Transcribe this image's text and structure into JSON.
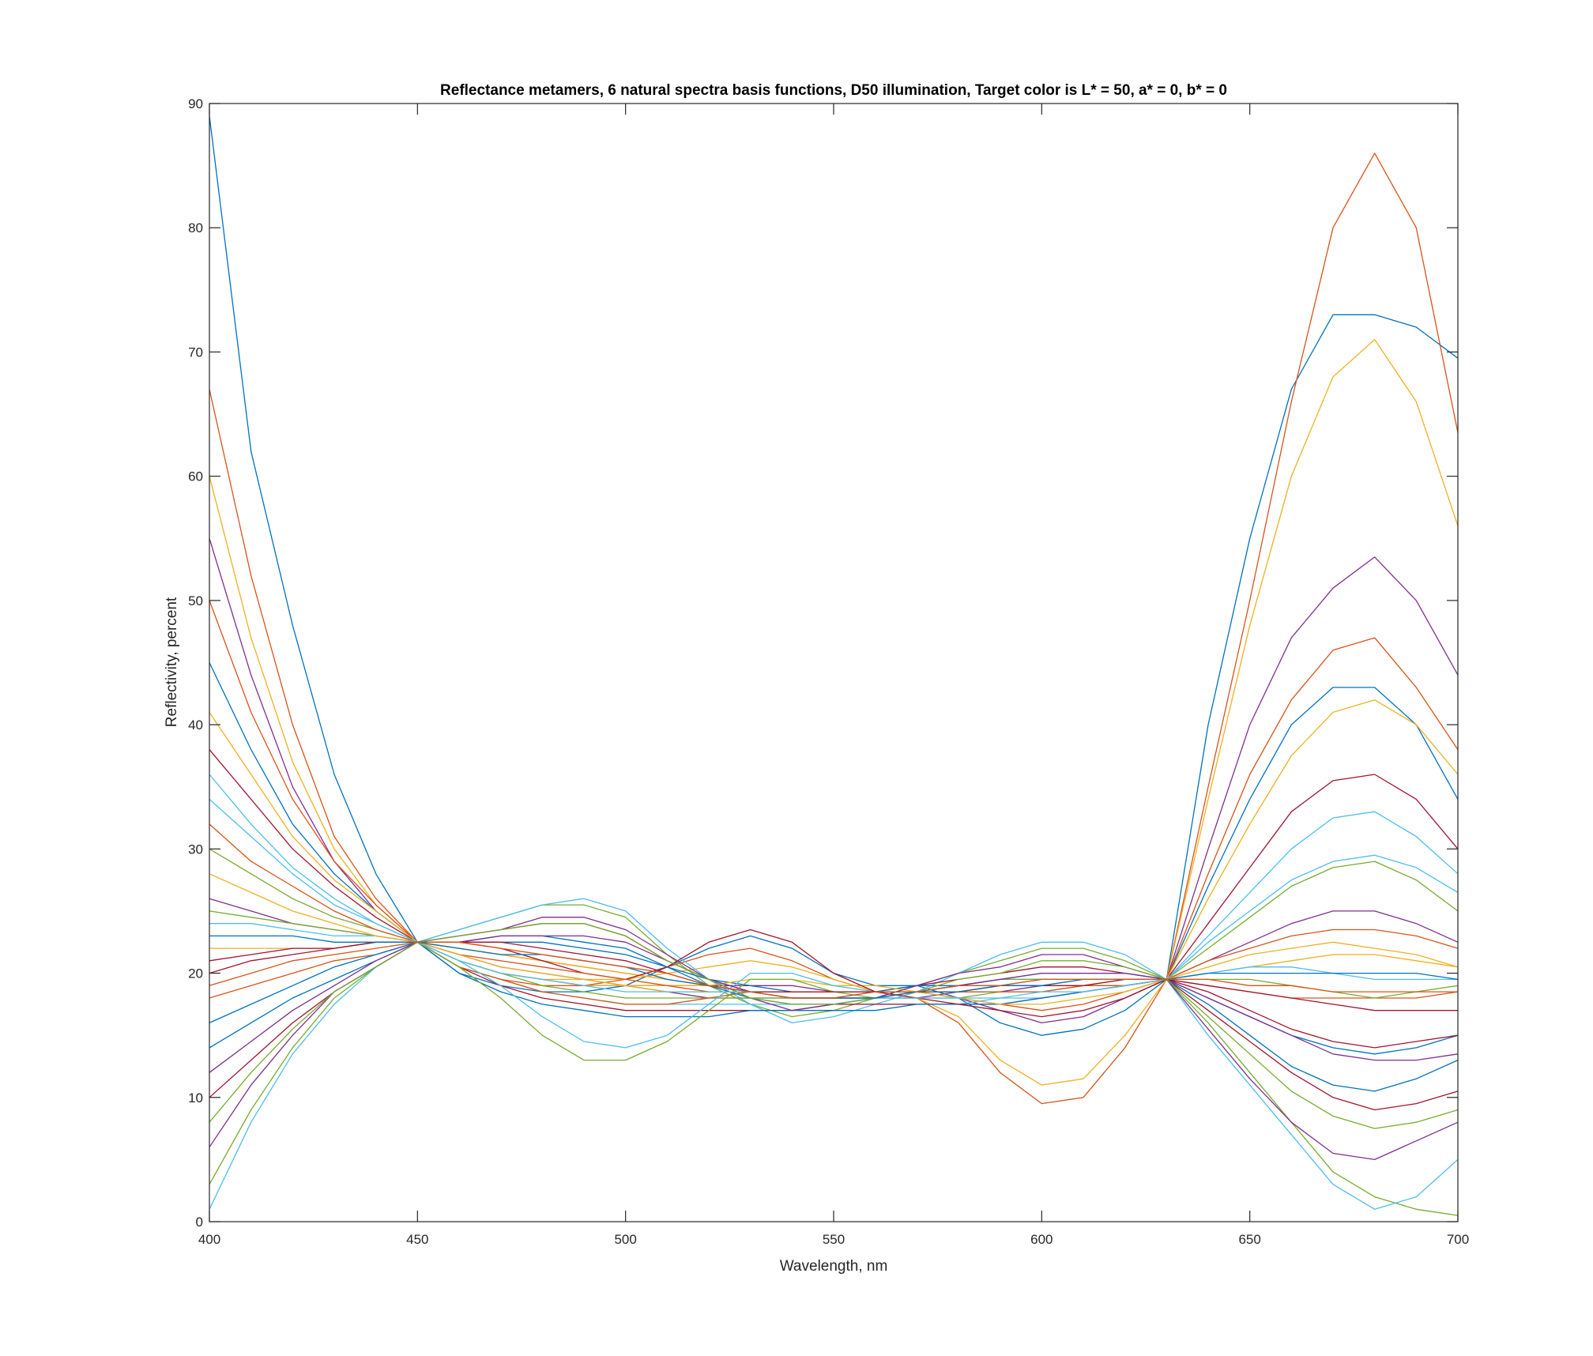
{
  "chart_data": {
    "type": "line",
    "title": "Reflectance metamers, 6 natural spectra basis functions, D50 illumination, Target color is L* = 50, a* = 0, b* = 0",
    "xlabel": "Wavelength, nm",
    "ylabel": "Reflectivity, percent",
    "xlim": [
      400,
      700
    ],
    "ylim": [
      0,
      90
    ],
    "xticks": [
      400,
      450,
      500,
      550,
      600,
      650,
      700
    ],
    "yticks": [
      0,
      10,
      20,
      30,
      40,
      50,
      60,
      70,
      80,
      90
    ],
    "grid": false,
    "legend": "none",
    "x": [
      400,
      410,
      420,
      430,
      440,
      450,
      460,
      470,
      480,
      490,
      500,
      510,
      520,
      530,
      540,
      550,
      560,
      570,
      580,
      590,
      600,
      610,
      620,
      630,
      640,
      650,
      660,
      670,
      680,
      690,
      700
    ],
    "color_order": [
      "#0072BD",
      "#D95319",
      "#EDB120",
      "#7E2F8E",
      "#77AC30",
      "#4DBEEE",
      "#A2142F"
    ],
    "series": [
      {
        "values": [
          89.0,
          62.0,
          48.0,
          36.0,
          28.0,
          22.5,
          20.0,
          19.0,
          18.5,
          18.5,
          19.0,
          20.5,
          22.0,
          23.0,
          22.0,
          20.0,
          19.0,
          19.0,
          18.0,
          16.0,
          15.0,
          15.5,
          17.0,
          19.5,
          40.0,
          55.0,
          67.0,
          73.0,
          73.0,
          72.0,
          69.5
        ]
      },
      {
        "values": [
          67.0,
          52.0,
          40.0,
          31.0,
          26.0,
          22.5,
          20.5,
          19.5,
          19.0,
          19.0,
          19.5,
          20.5,
          21.5,
          22.0,
          21.0,
          19.5,
          18.5,
          18.0,
          16.0,
          12.0,
          9.5,
          10.0,
          14.0,
          19.5,
          35.0,
          50.0,
          66.0,
          80.0,
          86.0,
          80.0,
          63.5
        ]
      },
      {
        "values": [
          60.0,
          47.0,
          37.0,
          30.0,
          25.5,
          22.5,
          21.0,
          20.0,
          19.5,
          19.5,
          19.5,
          20.0,
          20.5,
          21.0,
          20.5,
          19.5,
          18.5,
          18.0,
          16.5,
          13.0,
          11.0,
          11.5,
          15.0,
          19.5,
          34.0,
          48.0,
          60.0,
          68.0,
          71.0,
          66.0,
          56.0
        ]
      },
      {
        "values": [
          55.0,
          44.0,
          35.0,
          29.0,
          25.0,
          22.5,
          21.0,
          20.0,
          19.5,
          19.0,
          19.0,
          19.0,
          19.0,
          19.0,
          19.0,
          18.5,
          18.5,
          18.5,
          18.0,
          17.0,
          16.0,
          16.5,
          18.0,
          19.5,
          30.0,
          40.0,
          47.0,
          51.0,
          53.5,
          50.0,
          44.0
        ]
      },
      {
        "values": [
          3.0,
          9.0,
          14.0,
          18.0,
          20.5,
          22.5,
          23.5,
          24.5,
          25.5,
          25.5,
          24.5,
          21.5,
          19.0,
          17.5,
          16.5,
          17.0,
          18.0,
          19.0,
          20.0,
          21.0,
          22.0,
          22.0,
          21.0,
          19.5,
          16.0,
          12.0,
          8.0,
          4.0,
          2.0,
          1.0,
          0.5
        ]
      },
      {
        "values": [
          1.0,
          8.0,
          13.5,
          17.5,
          20.5,
          22.5,
          23.5,
          24.5,
          25.5,
          26.0,
          25.0,
          22.0,
          19.5,
          17.5,
          16.0,
          16.5,
          17.5,
          18.5,
          20.0,
          21.5,
          22.5,
          22.5,
          21.5,
          19.5,
          15.0,
          11.0,
          7.0,
          3.0,
          1.0,
          2.0,
          5.0
        ]
      },
      {
        "values": [
          10.0,
          13.0,
          16.0,
          18.5,
          20.5,
          22.5,
          23.0,
          23.5,
          24.0,
          24.0,
          23.0,
          21.0,
          19.5,
          18.5,
          18.0,
          18.0,
          18.5,
          19.0,
          19.5,
          20.0,
          20.5,
          20.5,
          20.0,
          19.5,
          17.0,
          14.5,
          12.0,
          10.0,
          9.0,
          9.5,
          10.5
        ]
      },
      {
        "values": [
          14.0,
          16.0,
          18.0,
          19.5,
          21.0,
          22.5,
          22.5,
          22.5,
          22.5,
          22.0,
          21.5,
          20.5,
          19.5,
          19.0,
          18.5,
          18.5,
          18.5,
          19.0,
          19.0,
          19.5,
          19.5,
          19.5,
          19.5,
          19.5,
          18.0,
          16.5,
          15.0,
          14.0,
          13.5,
          14.0,
          15.0
        ]
      },
      {
        "values": [
          18.0,
          19.0,
          20.0,
          21.0,
          21.5,
          22.5,
          22.0,
          21.5,
          21.0,
          20.5,
          20.0,
          19.5,
          19.0,
          18.5,
          18.5,
          18.5,
          18.5,
          18.5,
          19.0,
          19.0,
          19.5,
          19.5,
          19.5,
          19.5,
          19.0,
          18.5,
          18.0,
          18.0,
          18.0,
          18.0,
          18.5
        ]
      },
      {
        "values": [
          22.0,
          22.0,
          22.0,
          22.0,
          22.5,
          22.5,
          22.0,
          21.5,
          21.0,
          20.5,
          20.0,
          19.5,
          19.0,
          18.5,
          18.0,
          18.0,
          18.0,
          18.5,
          18.5,
          19.0,
          19.0,
          19.5,
          19.5,
          19.5,
          20.0,
          20.5,
          21.0,
          21.5,
          21.5,
          21.0,
          20.5
        ]
      },
      {
        "values": [
          26.0,
          25.0,
          24.0,
          23.5,
          23.0,
          22.5,
          21.5,
          20.5,
          20.0,
          19.5,
          19.0,
          18.5,
          18.0,
          18.0,
          18.0,
          18.0,
          18.0,
          18.0,
          18.5,
          18.5,
          19.0,
          19.0,
          19.5,
          19.5,
          21.0,
          22.5,
          24.0,
          25.0,
          25.0,
          24.0,
          22.5
        ]
      },
      {
        "values": [
          30.0,
          28.0,
          26.0,
          24.5,
          23.5,
          22.5,
          21.0,
          20.0,
          19.0,
          18.5,
          18.0,
          18.0,
          18.0,
          18.0,
          18.0,
          18.0,
          18.0,
          18.0,
          18.0,
          18.5,
          18.5,
          19.0,
          19.0,
          19.5,
          22.0,
          24.5,
          27.0,
          28.5,
          29.0,
          27.5,
          25.0
        ]
      },
      {
        "values": [
          34.0,
          31.0,
          28.0,
          25.5,
          24.0,
          22.5,
          20.5,
          19.5,
          18.5,
          18.0,
          17.5,
          17.5,
          17.5,
          17.5,
          17.5,
          17.5,
          17.5,
          17.5,
          17.5,
          18.0,
          18.0,
          18.5,
          19.0,
          19.5,
          23.0,
          26.5,
          30.0,
          32.5,
          33.0,
          31.0,
          28.0
        ]
      },
      {
        "values": [
          38.0,
          34.0,
          30.0,
          27.0,
          24.5,
          22.5,
          20.5,
          19.0,
          18.0,
          17.5,
          17.0,
          17.0,
          17.0,
          17.0,
          17.0,
          17.5,
          17.5,
          17.5,
          17.5,
          17.5,
          18.0,
          18.5,
          19.0,
          19.5,
          24.0,
          28.5,
          33.0,
          35.5,
          36.0,
          34.0,
          30.0
        ]
      },
      {
        "values": [
          45.0,
          38.0,
          32.0,
          28.0,
          25.0,
          22.5,
          20.0,
          18.5,
          17.5,
          17.0,
          16.5,
          16.5,
          16.5,
          17.0,
          17.0,
          17.0,
          17.0,
          17.5,
          17.5,
          17.5,
          18.0,
          18.5,
          19.0,
          19.5,
          27.0,
          34.0,
          40.0,
          43.0,
          43.0,
          40.0,
          34.0
        ]
      },
      {
        "values": [
          50.0,
          41.0,
          34.0,
          29.0,
          25.5,
          22.5,
          20.5,
          19.5,
          18.5,
          18.0,
          17.5,
          17.5,
          18.0,
          18.5,
          18.5,
          18.5,
          18.5,
          18.5,
          18.0,
          17.5,
          17.0,
          17.5,
          18.5,
          19.5,
          28.0,
          36.0,
          42.0,
          46.0,
          47.0,
          43.0,
          38.0
        ]
      },
      {
        "values": [
          41.0,
          36.0,
          31.0,
          27.5,
          25.0,
          22.5,
          21.0,
          20.0,
          19.5,
          19.0,
          19.0,
          19.0,
          19.0,
          19.5,
          19.5,
          19.0,
          19.0,
          18.5,
          18.0,
          17.5,
          17.5,
          18.0,
          18.5,
          19.5,
          26.0,
          32.0,
          37.5,
          41.0,
          42.0,
          40.0,
          36.0
        ]
      },
      {
        "values": [
          6.0,
          11.0,
          15.0,
          18.5,
          20.5,
          22.5,
          23.0,
          23.5,
          24.5,
          24.5,
          23.5,
          21.5,
          19.5,
          18.0,
          17.0,
          17.5,
          18.0,
          19.0,
          20.0,
          20.5,
          21.5,
          21.5,
          20.5,
          19.5,
          15.5,
          11.5,
          8.0,
          5.5,
          5.0,
          6.5,
          8.0
        ]
      },
      {
        "values": [
          25.0,
          24.5,
          24.0,
          23.5,
          23.0,
          22.5,
          20.5,
          18.0,
          15.0,
          13.0,
          13.0,
          14.5,
          17.0,
          19.5,
          19.5,
          18.5,
          18.0,
          18.5,
          19.0,
          19.5,
          19.5,
          19.5,
          19.5,
          19.5,
          19.5,
          19.5,
          19.0,
          18.5,
          18.0,
          18.5,
          19.0
        ]
      },
      {
        "values": [
          24.0,
          24.0,
          23.5,
          23.0,
          23.0,
          22.5,
          21.0,
          19.0,
          16.5,
          14.5,
          14.0,
          15.0,
          17.5,
          20.0,
          20.0,
          19.0,
          18.5,
          18.5,
          19.0,
          19.0,
          19.5,
          19.5,
          19.5,
          19.5,
          20.0,
          20.5,
          20.5,
          20.0,
          19.5,
          19.5,
          19.5
        ]
      },
      {
        "values": [
          20.0,
          21.0,
          21.5,
          22.0,
          22.5,
          22.5,
          22.5,
          22.0,
          21.0,
          20.0,
          19.5,
          20.5,
          22.5,
          23.5,
          22.5,
          20.0,
          18.5,
          18.0,
          17.5,
          17.0,
          16.5,
          17.0,
          18.0,
          19.5,
          18.5,
          17.0,
          15.5,
          14.5,
          14.0,
          14.5,
          15.0
        ]
      },
      {
        "values": [
          16.0,
          17.5,
          19.0,
          20.5,
          21.5,
          22.5,
          22.5,
          23.0,
          23.0,
          22.5,
          22.0,
          20.5,
          19.0,
          18.0,
          17.5,
          17.5,
          18.0,
          18.5,
          19.0,
          19.5,
          20.0,
          20.0,
          20.0,
          19.5,
          17.5,
          15.0,
          12.5,
          11.0,
          10.5,
          11.5,
          13.0
        ]
      },
      {
        "values": [
          32.0,
          29.0,
          27.0,
          25.0,
          23.5,
          22.5,
          21.5,
          21.0,
          20.5,
          20.0,
          19.5,
          19.0,
          18.5,
          18.5,
          18.5,
          18.5,
          18.5,
          18.5,
          18.5,
          18.5,
          18.5,
          19.0,
          19.0,
          19.5,
          21.0,
          22.0,
          23.0,
          23.5,
          23.5,
          23.0,
          22.0
        ]
      },
      {
        "values": [
          28.0,
          26.5,
          25.0,
          24.0,
          23.0,
          22.5,
          21.5,
          20.5,
          20.0,
          19.5,
          19.0,
          18.5,
          18.5,
          18.5,
          18.5,
          18.5,
          18.5,
          18.5,
          18.5,
          19.0,
          19.0,
          19.0,
          19.5,
          19.5,
          20.5,
          21.5,
          22.0,
          22.5,
          22.0,
          21.5,
          20.5
        ]
      },
      {
        "values": [
          12.0,
          14.5,
          17.0,
          19.0,
          21.0,
          22.5,
          22.5,
          23.0,
          23.0,
          23.0,
          22.5,
          21.0,
          19.5,
          18.5,
          18.0,
          18.0,
          18.0,
          18.5,
          19.0,
          19.5,
          20.0,
          20.0,
          20.0,
          19.5,
          18.0,
          16.5,
          15.0,
          13.5,
          13.0,
          13.0,
          13.5
        ]
      },
      {
        "values": [
          8.0,
          12.0,
          15.5,
          18.5,
          20.5,
          22.5,
          23.0,
          23.5,
          24.0,
          24.0,
          23.0,
          21.0,
          19.5,
          18.0,
          17.5,
          17.5,
          18.0,
          18.5,
          19.5,
          20.0,
          21.0,
          21.0,
          20.5,
          19.5,
          16.5,
          13.5,
          10.5,
          8.5,
          7.5,
          8.0,
          9.0
        ]
      },
      {
        "values": [
          36.0,
          32.0,
          28.5,
          26.0,
          24.0,
          22.5,
          21.0,
          20.0,
          19.5,
          19.0,
          18.5,
          18.5,
          18.5,
          18.5,
          18.0,
          18.0,
          18.0,
          18.0,
          18.0,
          18.0,
          18.5,
          18.5,
          19.0,
          19.5,
          22.5,
          25.0,
          27.5,
          29.0,
          29.5,
          28.5,
          26.5
        ]
      },
      {
        "values": [
          21.0,
          21.5,
          22.0,
          22.0,
          22.5,
          22.5,
          22.5,
          22.5,
          22.0,
          21.5,
          21.0,
          20.0,
          19.0,
          18.5,
          18.5,
          18.5,
          18.5,
          18.5,
          18.5,
          19.0,
          19.0,
          19.0,
          19.5,
          19.5,
          19.0,
          18.5,
          18.0,
          17.5,
          17.0,
          17.0,
          17.0
        ]
      },
      {
        "values": [
          23.0,
          23.0,
          23.0,
          22.5,
          22.5,
          22.5,
          22.0,
          21.5,
          21.5,
          21.0,
          20.5,
          19.5,
          19.0,
          18.5,
          18.0,
          18.0,
          18.0,
          18.5,
          18.5,
          19.0,
          19.0,
          19.5,
          19.5,
          19.5,
          20.0,
          20.0,
          20.0,
          20.0,
          20.0,
          20.0,
          19.5
        ]
      },
      {
        "values": [
          19.0,
          20.0,
          21.0,
          21.5,
          22.0,
          22.5,
          22.5,
          22.0,
          21.5,
          21.0,
          20.5,
          20.0,
          19.0,
          18.5,
          18.0,
          18.0,
          18.5,
          18.5,
          19.0,
          19.0,
          19.5,
          19.5,
          19.5,
          19.5,
          19.5,
          19.0,
          19.0,
          18.5,
          18.5,
          18.5,
          18.5
        ]
      }
    ]
  }
}
